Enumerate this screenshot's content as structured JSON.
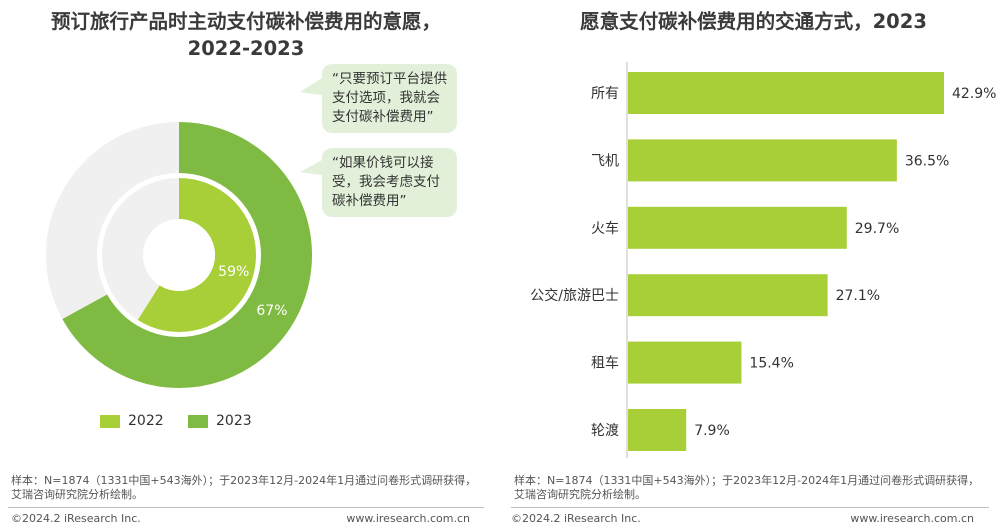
{
  "left": {
    "title_line1": "预订旅行产品时主动支付碳补偿费用的意愿，",
    "title_line2": "2022-2023",
    "bubbles": [
      "“只要预订平台提供支付选项，我就会支付碳补偿费用”",
      "“如果价钱可以接受，我会考虑支付碳补偿费用”"
    ],
    "note": "样本：N=1874（1331中国+543海外）；于2023年12月-2024年1月通过问卷形式调研获得，艾瑞咨询研究院分析绘制。",
    "footer_left": "©2024.2 iResearch Inc.",
    "footer_right": "www.iresearch.com.cn"
  },
  "right": {
    "title": "愿意支付碳补偿费用的交通方式，2023",
    "note": "样本：N=1874（1331中国+543海外）；于2023年12月-2024年1月通过问卷形式调研获得，艾瑞咨询研究院分析绘制。",
    "footer_left": "©2024.2 iResearch Inc.",
    "footer_right": "www.iresearch.com.cn"
  },
  "colors": {
    "green_2022": "#a8cf38",
    "green_2023": "#7fba42",
    "remainder": "#f0f0f0",
    "bar": "#a8cf38",
    "bubble": "#e2f0d9"
  },
  "chart_data": [
    {
      "type": "pie",
      "subtype": "nested-donut",
      "title": "预订旅行产品时主动支付碳补偿费用的意愿，2022-2023",
      "series": [
        {
          "name": "2022",
          "value": 59,
          "label": "59%"
        },
        {
          "name": "2023",
          "value": 67,
          "label": "67%"
        }
      ],
      "unit": "%",
      "legend_position": "bottom"
    },
    {
      "type": "bar",
      "orientation": "horizontal",
      "title": "愿意支付碳补偿费用的交通方式，2023",
      "categories": [
        "所有",
        "飞机",
        "火车",
        "公交/旅游巴士",
        "租车",
        "轮渡"
      ],
      "values": [
        42.9,
        36.5,
        29.7,
        27.1,
        15.4,
        7.9
      ],
      "labels": [
        "42.9%",
        "36.5%",
        "29.7%",
        "27.1%",
        "15.4%",
        "7.9%"
      ],
      "unit": "%",
      "xlim": [
        0,
        42.9
      ]
    }
  ]
}
